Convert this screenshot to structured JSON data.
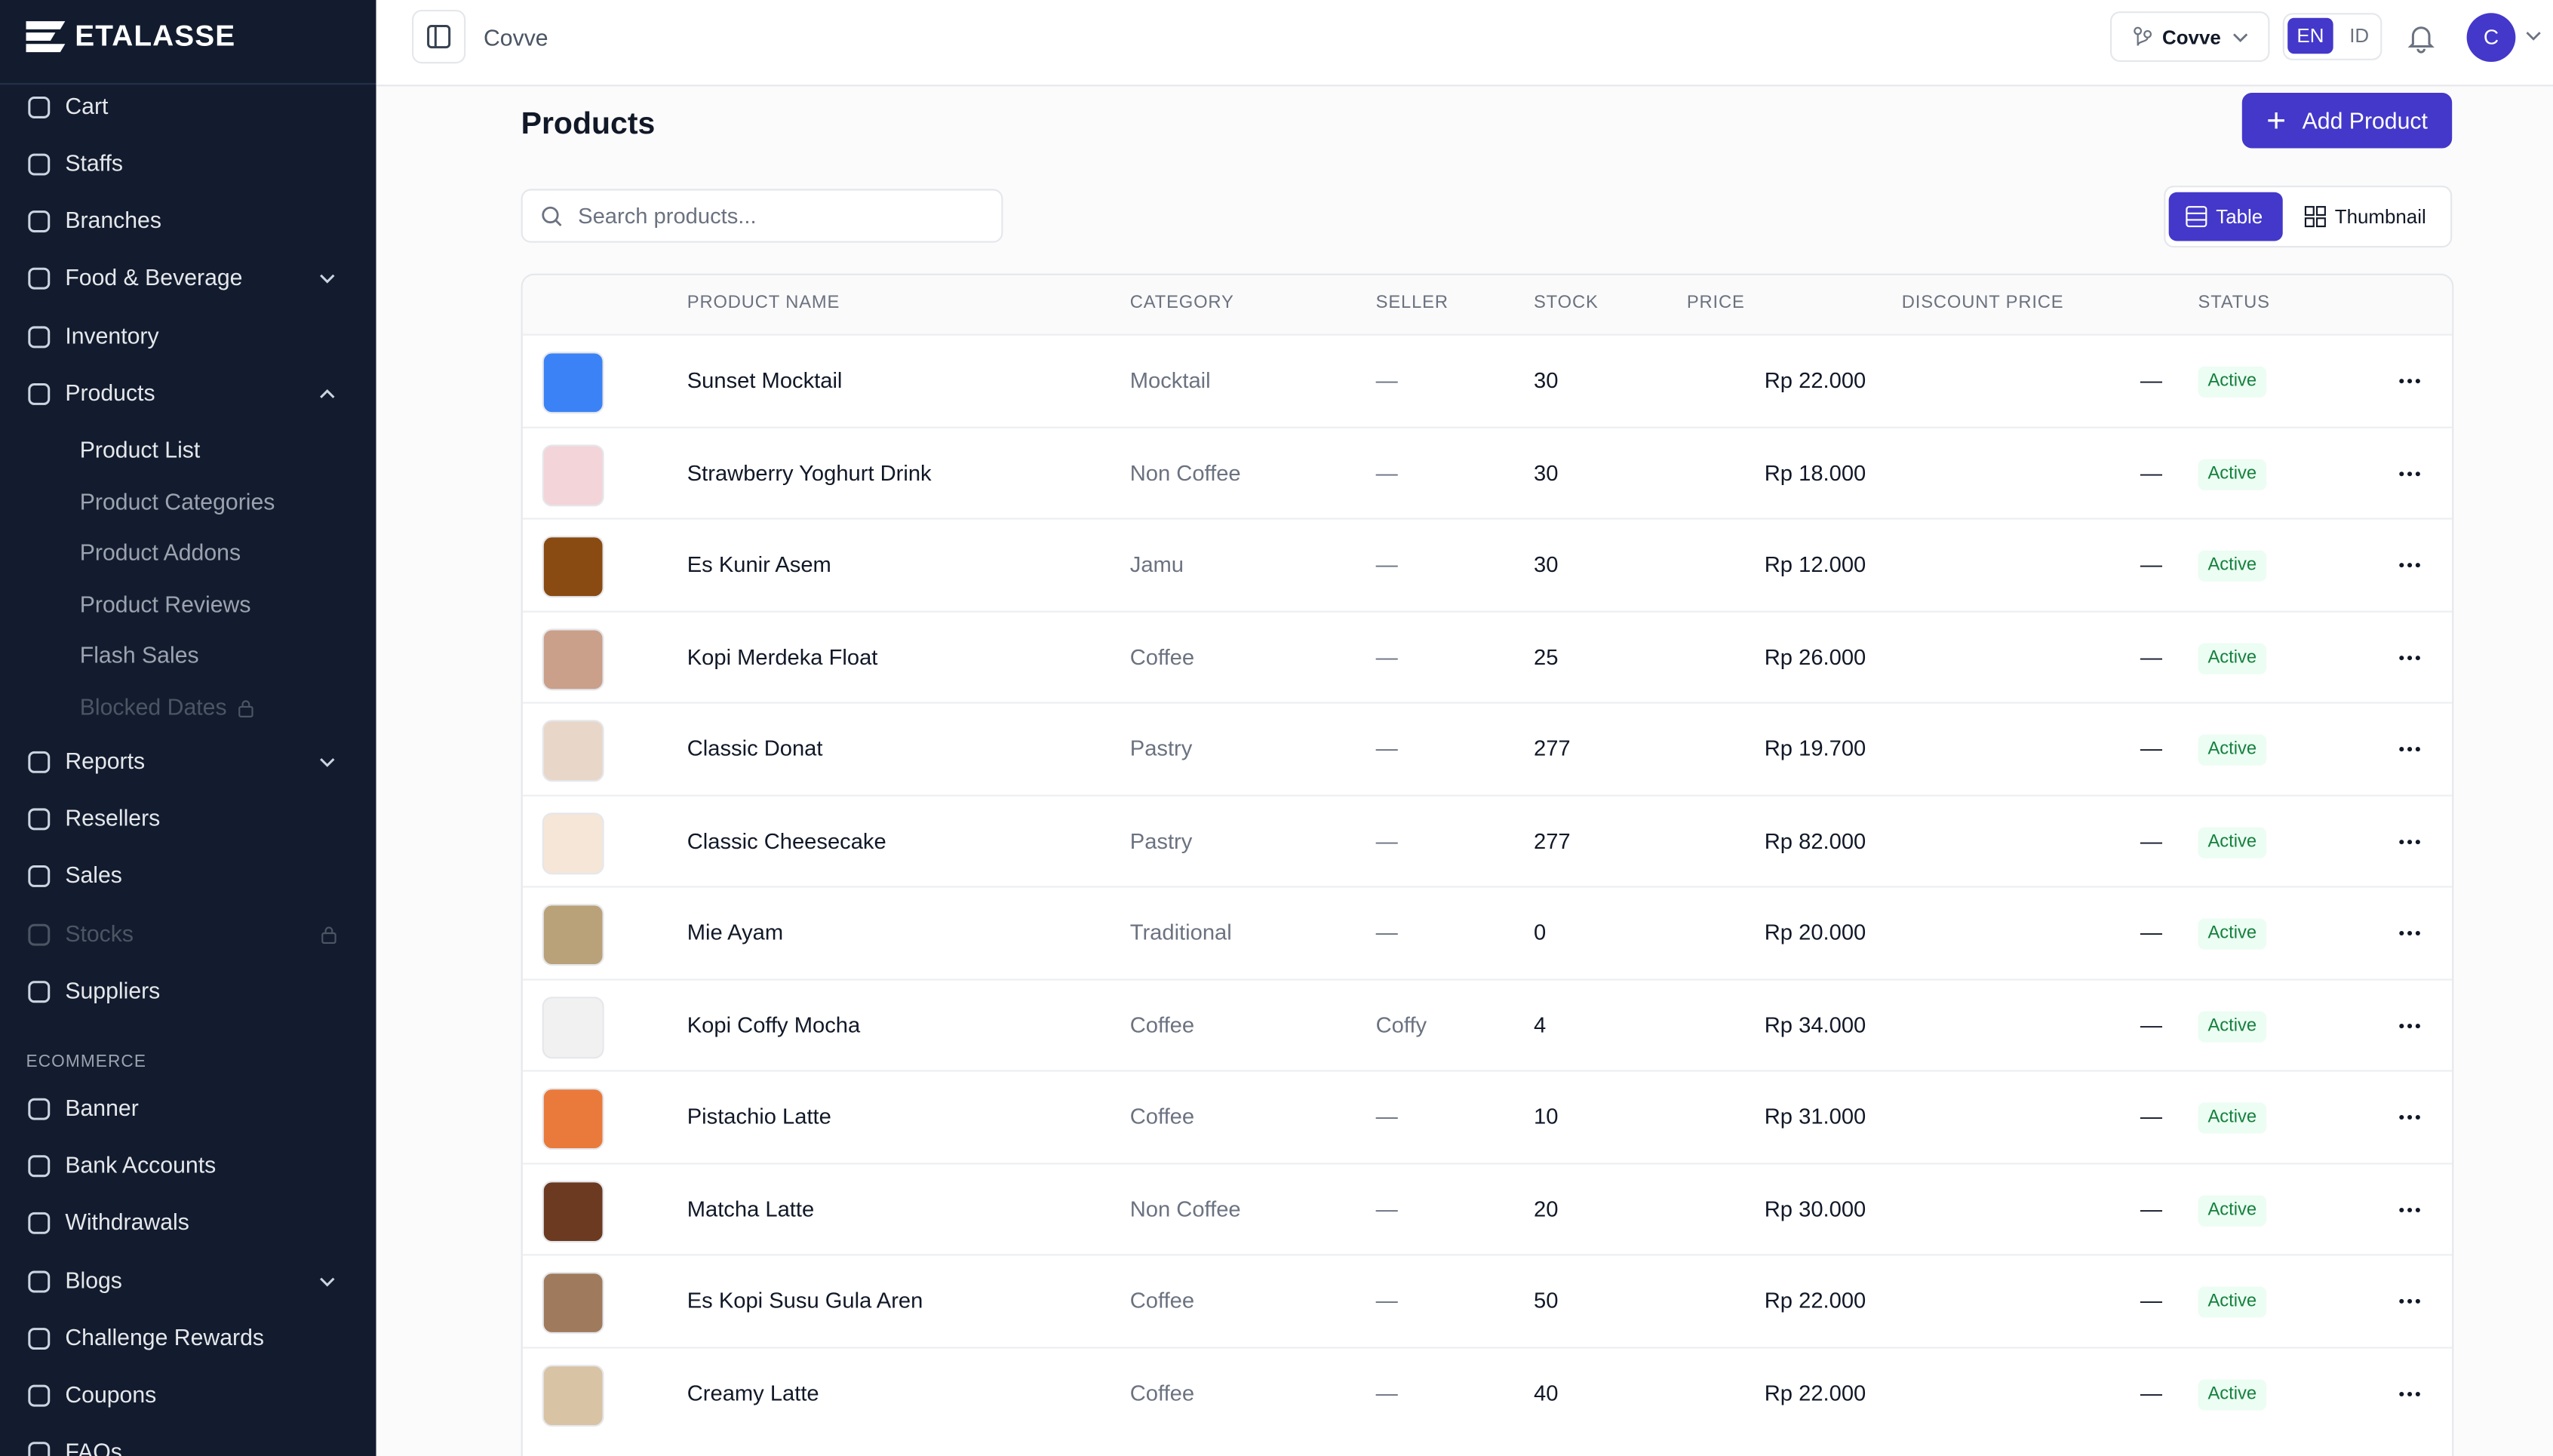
{
  "brand": "ETALASSE",
  "topbar": {
    "workspace": "Covve",
    "branch": "Covve",
    "languages": [
      "EN",
      "ID"
    ],
    "avatar": "C"
  },
  "sidebar": {
    "items": [
      "Cart",
      "Staffs",
      "Branches",
      "Food & Beverage",
      "Inventory",
      "Products"
    ],
    "products_submenu": [
      "Product List",
      "Product Categories",
      "Product Addons",
      "Product Reviews",
      "Flash Sales",
      "Blocked Dates"
    ],
    "more_items": [
      "Reports",
      "Resellers",
      "Sales",
      "Stocks",
      "Suppliers"
    ],
    "section": "ECOMMERCE",
    "ecommerce_items": [
      "Banner",
      "Bank Accounts",
      "Withdrawals",
      "Blogs",
      "Challenge Rewards",
      "Coupons",
      "FAQs"
    ]
  },
  "page": {
    "title": "Products",
    "add_button": "Add Product",
    "search_placeholder": "Search products...",
    "views": [
      "Table",
      "Thumbnail"
    ]
  },
  "table": {
    "columns": [
      "PRODUCT NAME",
      "CATEGORY",
      "SELLER",
      "STOCK",
      "PRICE",
      "DISCOUNT PRICE",
      "STATUS"
    ],
    "rows": [
      [
        "Sunset Mocktail",
        "Mocktail",
        "—",
        "30",
        "Rp 22.000",
        "—",
        "Active"
      ],
      [
        "Strawberry Yoghurt Drink",
        "Non Coffee",
        "—",
        "30",
        "Rp 18.000",
        "—",
        "Active"
      ],
      [
        "Es Kunir Asem",
        "Jamu",
        "—",
        "30",
        "Rp 12.000",
        "—",
        "Active"
      ],
      [
        "Kopi Merdeka Float",
        "Coffee",
        "—",
        "25",
        "Rp 26.000",
        "—",
        "Active"
      ],
      [
        "Classic Donat",
        "Pastry",
        "—",
        "277",
        "Rp 19.700",
        "—",
        "Active"
      ],
      [
        "Classic Cheesecake",
        "Pastry",
        "—",
        "277",
        "Rp 82.000",
        "—",
        "Active"
      ],
      [
        "Mie Ayam",
        "Traditional",
        "—",
        "0",
        "Rp 20.000",
        "—",
        "Active"
      ],
      [
        "Kopi Coffy Mocha",
        "Coffee",
        "Coffy",
        "4",
        "Rp 34.000",
        "—",
        "Active"
      ],
      [
        "Pistachio Latte",
        "Coffee",
        "—",
        "10",
        "Rp 31.000",
        "—",
        "Active"
      ],
      [
        "Matcha Latte",
        "Non Coffee",
        "—",
        "20",
        "Rp 30.000",
        "—",
        "Active"
      ],
      [
        "Es Kopi Susu Gula Aren",
        "Coffee",
        "—",
        "50",
        "Rp 22.000",
        "—",
        "Active"
      ],
      [
        "Creamy Latte",
        "Coffee",
        "—",
        "40",
        "Rp 22.000",
        "—",
        "Active"
      ]
    ]
  }
}
